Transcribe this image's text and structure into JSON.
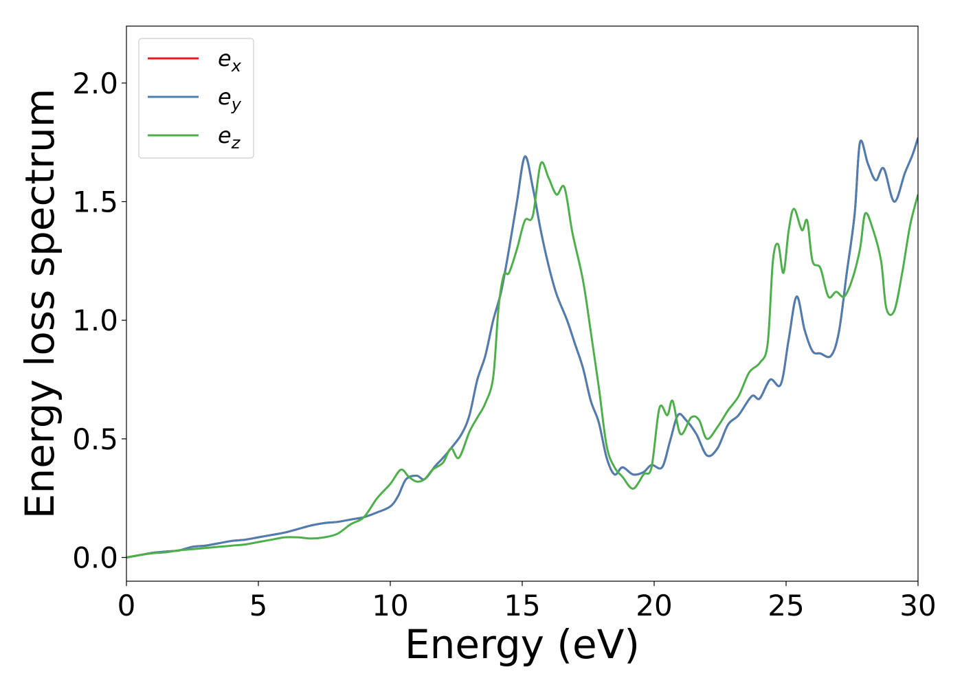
{
  "chart_data": {
    "type": "line",
    "title": "",
    "xlabel": "Energy (eV)",
    "ylabel": "Energy loss spectrum",
    "xlim": [
      0,
      30
    ],
    "ylim": [
      -0.1,
      2.24
    ],
    "xticks": [
      0,
      5,
      10,
      15,
      20,
      25,
      30
    ],
    "xtick_labels": [
      "0",
      "5",
      "10",
      "15",
      "20",
      "25",
      "30"
    ],
    "yticks": [
      0.0,
      0.5,
      1.0,
      1.5,
      2.0
    ],
    "ytick_labels": [
      "0.0",
      "0.5",
      "1.0",
      "1.5",
      "2.0"
    ],
    "grid": false,
    "legend_position": "top-left",
    "series": [
      {
        "name": "e_x",
        "legend_base": "e",
        "legend_sub": "x",
        "color": "#e41a1c",
        "points": [
          [
            0,
            0
          ],
          [
            0.5,
            0.01
          ],
          [
            1,
            0.02
          ],
          [
            1.5,
            0.025
          ],
          [
            2,
            0.03
          ],
          [
            2.5,
            0.045
          ],
          [
            3,
            0.05
          ],
          [
            3.5,
            0.06
          ],
          [
            4,
            0.07
          ],
          [
            4.5,
            0.075
          ],
          [
            5,
            0.085
          ],
          [
            5.5,
            0.095
          ],
          [
            6,
            0.105
          ],
          [
            6.5,
            0.12
          ],
          [
            7,
            0.135
          ],
          [
            7.5,
            0.145
          ],
          [
            8,
            0.15
          ],
          [
            8.5,
            0.16
          ],
          [
            9,
            0.17
          ],
          [
            9.5,
            0.19
          ],
          [
            10,
            0.215
          ],
          [
            10.3,
            0.26
          ],
          [
            10.6,
            0.33
          ],
          [
            11,
            0.345
          ],
          [
            11.3,
            0.33
          ],
          [
            11.7,
            0.385
          ],
          [
            12,
            0.42
          ],
          [
            12.3,
            0.46
          ],
          [
            12.7,
            0.52
          ],
          [
            13,
            0.6
          ],
          [
            13.3,
            0.75
          ],
          [
            13.6,
            0.85
          ],
          [
            13.9,
            1.0
          ],
          [
            14.2,
            1.12
          ],
          [
            14.5,
            1.3
          ],
          [
            14.8,
            1.5
          ],
          [
            15.1,
            1.69
          ],
          [
            15.4,
            1.56
          ],
          [
            15.7,
            1.38
          ],
          [
            16,
            1.23
          ],
          [
            16.3,
            1.11
          ],
          [
            16.7,
            1.0
          ],
          [
            17,
            0.9
          ],
          [
            17.3,
            0.8
          ],
          [
            17.6,
            0.66
          ],
          [
            17.9,
            0.57
          ],
          [
            18.2,
            0.42
          ],
          [
            18.5,
            0.35
          ],
          [
            18.8,
            0.38
          ],
          [
            19.2,
            0.35
          ],
          [
            19.6,
            0.36
          ],
          [
            19.9,
            0.39
          ],
          [
            20.3,
            0.38
          ],
          [
            20.6,
            0.49
          ],
          [
            20.9,
            0.6
          ],
          [
            21.2,
            0.58
          ],
          [
            21.6,
            0.52
          ],
          [
            22,
            0.43
          ],
          [
            22.4,
            0.46
          ],
          [
            22.8,
            0.56
          ],
          [
            23.2,
            0.6
          ],
          [
            23.7,
            0.68
          ],
          [
            24,
            0.67
          ],
          [
            24.4,
            0.75
          ],
          [
            24.8,
            0.73
          ],
          [
            25.1,
            0.92
          ],
          [
            25.4,
            1.1
          ],
          [
            25.7,
            0.96
          ],
          [
            26,
            0.87
          ],
          [
            26.3,
            0.86
          ],
          [
            26.7,
            0.85
          ],
          [
            27,
            0.95
          ],
          [
            27.3,
            1.2
          ],
          [
            27.6,
            1.45
          ],
          [
            27.8,
            1.75
          ],
          [
            28.1,
            1.66
          ],
          [
            28.4,
            1.59
          ],
          [
            28.7,
            1.64
          ],
          [
            29.1,
            1.5
          ],
          [
            29.5,
            1.62
          ],
          [
            29.8,
            1.7
          ],
          [
            30,
            1.77
          ]
        ]
      },
      {
        "name": "e_y",
        "legend_base": "e",
        "legend_sub": "y",
        "color": "#4d7eb2",
        "points": [
          [
            0,
            0
          ],
          [
            0.5,
            0.01
          ],
          [
            1,
            0.02
          ],
          [
            1.5,
            0.025
          ],
          [
            2,
            0.03
          ],
          [
            2.5,
            0.045
          ],
          [
            3,
            0.05
          ],
          [
            3.5,
            0.06
          ],
          [
            4,
            0.07
          ],
          [
            4.5,
            0.075
          ],
          [
            5,
            0.085
          ],
          [
            5.5,
            0.095
          ],
          [
            6,
            0.105
          ],
          [
            6.5,
            0.12
          ],
          [
            7,
            0.135
          ],
          [
            7.5,
            0.145
          ],
          [
            8,
            0.15
          ],
          [
            8.5,
            0.16
          ],
          [
            9,
            0.17
          ],
          [
            9.5,
            0.19
          ],
          [
            10,
            0.215
          ],
          [
            10.3,
            0.26
          ],
          [
            10.6,
            0.33
          ],
          [
            11,
            0.345
          ],
          [
            11.3,
            0.33
          ],
          [
            11.7,
            0.385
          ],
          [
            12,
            0.42
          ],
          [
            12.3,
            0.46
          ],
          [
            12.7,
            0.52
          ],
          [
            13,
            0.6
          ],
          [
            13.3,
            0.75
          ],
          [
            13.6,
            0.85
          ],
          [
            13.9,
            1.0
          ],
          [
            14.2,
            1.12
          ],
          [
            14.5,
            1.3
          ],
          [
            14.8,
            1.5
          ],
          [
            15.1,
            1.69
          ],
          [
            15.4,
            1.56
          ],
          [
            15.7,
            1.38
          ],
          [
            16,
            1.23
          ],
          [
            16.3,
            1.11
          ],
          [
            16.7,
            1.0
          ],
          [
            17,
            0.9
          ],
          [
            17.3,
            0.8
          ],
          [
            17.6,
            0.66
          ],
          [
            17.9,
            0.57
          ],
          [
            18.2,
            0.42
          ],
          [
            18.5,
            0.35
          ],
          [
            18.8,
            0.38
          ],
          [
            19.2,
            0.35
          ],
          [
            19.6,
            0.36
          ],
          [
            19.9,
            0.39
          ],
          [
            20.3,
            0.38
          ],
          [
            20.6,
            0.49
          ],
          [
            20.9,
            0.6
          ],
          [
            21.2,
            0.58
          ],
          [
            21.6,
            0.52
          ],
          [
            22,
            0.43
          ],
          [
            22.4,
            0.46
          ],
          [
            22.8,
            0.56
          ],
          [
            23.2,
            0.6
          ],
          [
            23.7,
            0.68
          ],
          [
            24,
            0.67
          ],
          [
            24.4,
            0.75
          ],
          [
            24.8,
            0.73
          ],
          [
            25.1,
            0.92
          ],
          [
            25.4,
            1.1
          ],
          [
            25.7,
            0.96
          ],
          [
            26,
            0.87
          ],
          [
            26.3,
            0.86
          ],
          [
            26.7,
            0.85
          ],
          [
            27,
            0.95
          ],
          [
            27.3,
            1.2
          ],
          [
            27.6,
            1.45
          ],
          [
            27.8,
            1.75
          ],
          [
            28.1,
            1.66
          ],
          [
            28.4,
            1.59
          ],
          [
            28.7,
            1.64
          ],
          [
            29.1,
            1.5
          ],
          [
            29.5,
            1.62
          ],
          [
            29.8,
            1.7
          ],
          [
            30,
            1.77
          ]
        ]
      },
      {
        "name": "e_z",
        "legend_base": "e",
        "legend_sub": "z",
        "color": "#4daf4a",
        "points": [
          [
            0,
            0
          ],
          [
            0.5,
            0.01
          ],
          [
            1,
            0.018
          ],
          [
            1.5,
            0.022
          ],
          [
            2,
            0.03
          ],
          [
            2.5,
            0.035
          ],
          [
            3,
            0.04
          ],
          [
            3.5,
            0.045
          ],
          [
            4,
            0.05
          ],
          [
            4.5,
            0.055
          ],
          [
            5,
            0.065
          ],
          [
            5.5,
            0.075
          ],
          [
            6,
            0.085
          ],
          [
            6.5,
            0.085
          ],
          [
            7,
            0.08
          ],
          [
            7.5,
            0.085
          ],
          [
            8,
            0.1
          ],
          [
            8.5,
            0.14
          ],
          [
            9,
            0.17
          ],
          [
            9.5,
            0.25
          ],
          [
            10,
            0.31
          ],
          [
            10.4,
            0.37
          ],
          [
            10.7,
            0.34
          ],
          [
            11,
            0.32
          ],
          [
            11.3,
            0.33
          ],
          [
            11.6,
            0.37
          ],
          [
            12,
            0.4
          ],
          [
            12.3,
            0.46
          ],
          [
            12.6,
            0.42
          ],
          [
            13,
            0.53
          ],
          [
            13.3,
            0.59
          ],
          [
            13.6,
            0.65
          ],
          [
            13.9,
            0.76
          ],
          [
            14.1,
            1.05
          ],
          [
            14.3,
            1.19
          ],
          [
            14.5,
            1.2
          ],
          [
            14.8,
            1.3
          ],
          [
            15.1,
            1.42
          ],
          [
            15.4,
            1.44
          ],
          [
            15.7,
            1.66
          ],
          [
            16,
            1.6
          ],
          [
            16.3,
            1.53
          ],
          [
            16.6,
            1.56
          ],
          [
            16.9,
            1.37
          ],
          [
            17.3,
            1.17
          ],
          [
            17.6,
            0.95
          ],
          [
            17.9,
            0.72
          ],
          [
            18.2,
            0.47
          ],
          [
            18.5,
            0.38
          ],
          [
            18.8,
            0.34
          ],
          [
            19.2,
            0.29
          ],
          [
            19.6,
            0.35
          ],
          [
            19.9,
            0.38
          ],
          [
            20.2,
            0.63
          ],
          [
            20.5,
            0.6
          ],
          [
            20.7,
            0.66
          ],
          [
            21,
            0.52
          ],
          [
            21.4,
            0.59
          ],
          [
            21.7,
            0.58
          ],
          [
            22,
            0.5
          ],
          [
            22.4,
            0.55
          ],
          [
            22.8,
            0.62
          ],
          [
            23.2,
            0.68
          ],
          [
            23.6,
            0.78
          ],
          [
            24,
            0.82
          ],
          [
            24.3,
            0.9
          ],
          [
            24.5,
            1.25
          ],
          [
            24.7,
            1.32
          ],
          [
            24.9,
            1.2
          ],
          [
            25.1,
            1.38
          ],
          [
            25.3,
            1.47
          ],
          [
            25.6,
            1.38
          ],
          [
            25.8,
            1.42
          ],
          [
            26,
            1.25
          ],
          [
            26.3,
            1.22
          ],
          [
            26.6,
            1.1
          ],
          [
            26.9,
            1.12
          ],
          [
            27.2,
            1.1
          ],
          [
            27.5,
            1.17
          ],
          [
            27.8,
            1.3
          ],
          [
            28,
            1.45
          ],
          [
            28.3,
            1.38
          ],
          [
            28.6,
            1.25
          ],
          [
            28.8,
            1.05
          ],
          [
            29.1,
            1.04
          ],
          [
            29.4,
            1.2
          ],
          [
            29.7,
            1.4
          ],
          [
            30,
            1.53
          ]
        ]
      }
    ]
  }
}
